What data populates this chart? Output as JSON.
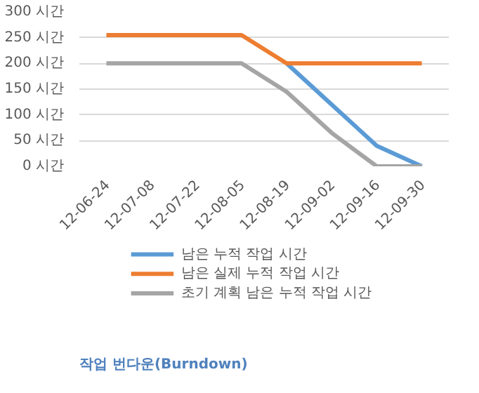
{
  "chart_data": {
    "type": "line",
    "title": "작업 번다운(Burndown)",
    "categories": [
      "12-06-24",
      "12-07-08",
      "12-07-22",
      "12-08-05",
      "12-08-19",
      "12-09-02",
      "12-09-16",
      "12-09-30"
    ],
    "series": [
      {
        "name": "남은 누적 작업 시간",
        "color": "#5b9bd5",
        "values": [
          null,
          null,
          null,
          null,
          200,
          120,
          40,
          0
        ]
      },
      {
        "name": "남은 실제 누적 작업 시간",
        "color": "#ed7d31",
        "values": [
          255,
          255,
          255,
          255,
          200,
          200,
          200,
          200
        ]
      },
      {
        "name": "초기 계획 남은 누적 작업 시간",
        "color": "#a5a5a5",
        "values": [
          200,
          200,
          200,
          200,
          145,
          65,
          0,
          0
        ]
      }
    ],
    "ylim": [
      0,
      300
    ],
    "yticks": [
      {
        "value": 0,
        "label": "0 시간"
      },
      {
        "value": 50,
        "label": "50 시간"
      },
      {
        "value": 100,
        "label": "100 시간"
      },
      {
        "value": 150,
        "label": "150 시간"
      },
      {
        "value": 200,
        "label": "200 시간"
      },
      {
        "value": 250,
        "label": "250 시간"
      },
      {
        "value": 300,
        "label": "300 시간"
      }
    ],
    "grid": "y",
    "legend": "bottom",
    "marker": "none",
    "line_style": "solid"
  }
}
